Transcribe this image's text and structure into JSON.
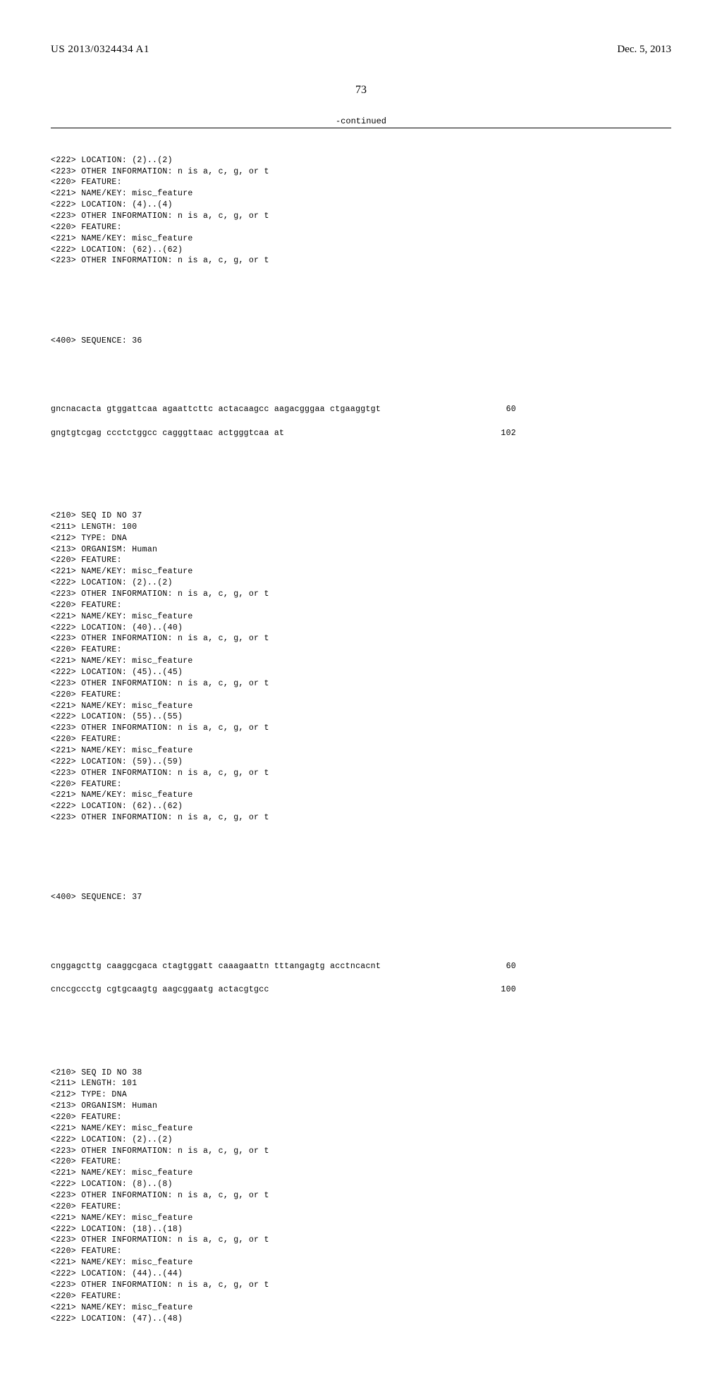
{
  "header": {
    "publication_number": "US 2013/0324434 A1",
    "publication_date": "Dec. 5, 2013"
  },
  "page_number": "73",
  "continued_label": "-continued",
  "block_pre": [
    "<222> LOCATION: (2)..(2)",
    "<223> OTHER INFORMATION: n is a, c, g, or t",
    "<220> FEATURE:",
    "<221> NAME/KEY: misc_feature",
    "<222> LOCATION: (4)..(4)",
    "<223> OTHER INFORMATION: n is a, c, g, or t",
    "<220> FEATURE:",
    "<221> NAME/KEY: misc_feature",
    "<222> LOCATION: (62)..(62)",
    "<223> OTHER INFORMATION: n is a, c, g, or t"
  ],
  "seq36_label": "<400> SEQUENCE: 36",
  "seq36_rows": [
    {
      "seq": "gncnacacta gtggattcaa agaattcttc actacaagcc aagacgggaa ctgaaggtgt",
      "pos": "60"
    },
    {
      "seq": "gngtgtcgag ccctctggcc cagggttaac actgggtcaa at",
      "pos": "102"
    }
  ],
  "block37_header": [
    "<210> SEQ ID NO 37",
    "<211> LENGTH: 100",
    "<212> TYPE: DNA",
    "<213> ORGANISM: Human",
    "<220> FEATURE:",
    "<221> NAME/KEY: misc_feature",
    "<222> LOCATION: (2)..(2)",
    "<223> OTHER INFORMATION: n is a, c, g, or t",
    "<220> FEATURE:",
    "<221> NAME/KEY: misc_feature",
    "<222> LOCATION: (40)..(40)",
    "<223> OTHER INFORMATION: n is a, c, g, or t",
    "<220> FEATURE:",
    "<221> NAME/KEY: misc_feature",
    "<222> LOCATION: (45)..(45)",
    "<223> OTHER INFORMATION: n is a, c, g, or t",
    "<220> FEATURE:",
    "<221> NAME/KEY: misc_feature",
    "<222> LOCATION: (55)..(55)",
    "<223> OTHER INFORMATION: n is a, c, g, or t",
    "<220> FEATURE:",
    "<221> NAME/KEY: misc_feature",
    "<222> LOCATION: (59)..(59)",
    "<223> OTHER INFORMATION: n is a, c, g, or t",
    "<220> FEATURE:",
    "<221> NAME/KEY: misc_feature",
    "<222> LOCATION: (62)..(62)",
    "<223> OTHER INFORMATION: n is a, c, g, or t"
  ],
  "seq37_label": "<400> SEQUENCE: 37",
  "seq37_rows": [
    {
      "seq": "cnggagcttg caaggcgaca ctagtggatt caaagaattn tttangagtg acctncacnt",
      "pos": "60"
    },
    {
      "seq": "cnccgccctg cgtgcaagtg aagcggaatg actacgtgcc",
      "pos": "100"
    }
  ],
  "block38_header": [
    "<210> SEQ ID NO 38",
    "<211> LENGTH: 101",
    "<212> TYPE: DNA",
    "<213> ORGANISM: Human",
    "<220> FEATURE:",
    "<221> NAME/KEY: misc_feature",
    "<222> LOCATION: (2)..(2)",
    "<223> OTHER INFORMATION: n is a, c, g, or t",
    "<220> FEATURE:",
    "<221> NAME/KEY: misc_feature",
    "<222> LOCATION: (8)..(8)",
    "<223> OTHER INFORMATION: n is a, c, g, or t",
    "<220> FEATURE:",
    "<221> NAME/KEY: misc_feature",
    "<222> LOCATION: (18)..(18)",
    "<223> OTHER INFORMATION: n is a, c, g, or t",
    "<220> FEATURE:",
    "<221> NAME/KEY: misc_feature",
    "<222> LOCATION: (44)..(44)",
    "<223> OTHER INFORMATION: n is a, c, g, or t",
    "<220> FEATURE:",
    "<221> NAME/KEY: misc_feature",
    "<222> LOCATION: (47)..(48)"
  ]
}
